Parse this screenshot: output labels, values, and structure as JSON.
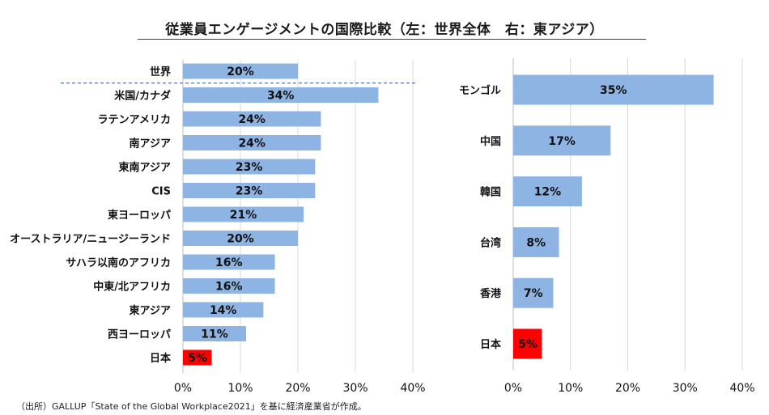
{
  "title": "従業員エンゲージメントの国際比較（左：世界全体　右：東アジア）",
  "source": "（出所）GALLUP「State of the Global Workplace2021」を基に経済産業省が作成。",
  "colors": {
    "bar": "#8eb4e3",
    "highlight": "#ff0000",
    "grid": "#d9d9d9",
    "dashed": "#2f5597"
  },
  "chart_data": [
    {
      "type": "bar",
      "orientation": "horizontal",
      "name": "世界全体",
      "categories": [
        "世界",
        "米国/カナダ",
        "ラテンアメリカ",
        "南アジア",
        "東南アジア",
        "CIS",
        "東ヨーロッパ",
        "オーストラリア/ニュージーランド",
        "サハラ以南のアフリカ",
        "中東/北アフリカ",
        "東アジア",
        "西ヨーロッパ",
        "日本"
      ],
      "values": [
        20,
        34,
        24,
        24,
        23,
        23,
        21,
        20,
        16,
        16,
        14,
        11,
        5
      ],
      "labels": [
        "20%",
        "34%",
        "24%",
        "24%",
        "23%",
        "23%",
        "21%",
        "20%",
        "16%",
        "16%",
        "14%",
        "11%",
        "5%"
      ],
      "highlight": [
        "日本"
      ],
      "xlim": [
        0,
        40
      ],
      "xticks": [
        "0%",
        "10%",
        "20%",
        "30%",
        "40%"
      ],
      "separator_after": "世界"
    },
    {
      "type": "bar",
      "orientation": "horizontal",
      "name": "東アジア",
      "categories": [
        "モンゴル",
        "中国",
        "韓国",
        "台湾",
        "香港",
        "日本"
      ],
      "values": [
        35,
        17,
        12,
        8,
        7,
        5
      ],
      "labels": [
        "35%",
        "17%",
        "12%",
        "8%",
        "7%",
        "5%"
      ],
      "highlight": [
        "日本"
      ],
      "xlim": [
        0,
        40
      ],
      "xticks": [
        "0%",
        "10%",
        "20%",
        "30%",
        "40%"
      ]
    }
  ]
}
